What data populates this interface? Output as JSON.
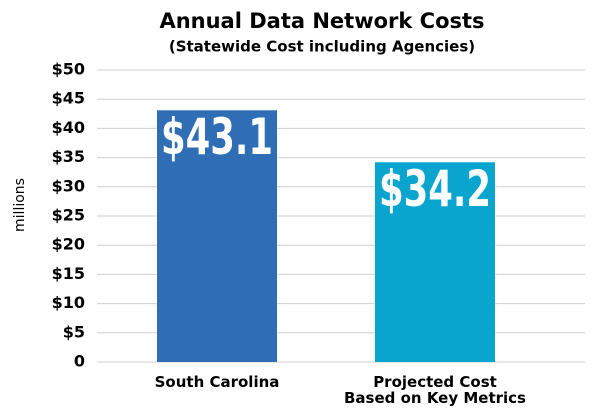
{
  "chart_data": {
    "type": "bar",
    "title": "Annual Data Network Costs",
    "subtitle": "(Statewide Cost including Agencies)",
    "ylabel": "millions",
    "categories": [
      "South Carolina",
      "Projected Cost\nBased on Key Metrics"
    ],
    "values": [
      43.1,
      34.2
    ],
    "value_labels": [
      "$43.1",
      "$34.2"
    ],
    "colors": [
      "#2f6db5",
      "#0aa5cf"
    ],
    "ylim": [
      0,
      50
    ],
    "yticks": [
      0,
      {
        "value": 5,
        "label": "$5"
      },
      {
        "value": 10,
        "label": "$10"
      },
      {
        "value": 15,
        "label": "$15"
      },
      {
        "value": 20,
        "label": "$20"
      },
      {
        "value": 25,
        "label": "$25"
      },
      {
        "value": 30,
        "label": "$30"
      },
      {
        "value": 35,
        "label": "$35"
      },
      {
        "value": 40,
        "label": "$40"
      },
      {
        "value": 45,
        "label": "$45"
      },
      {
        "value": 50,
        "label": "$50"
      }
    ],
    "grid": true
  }
}
